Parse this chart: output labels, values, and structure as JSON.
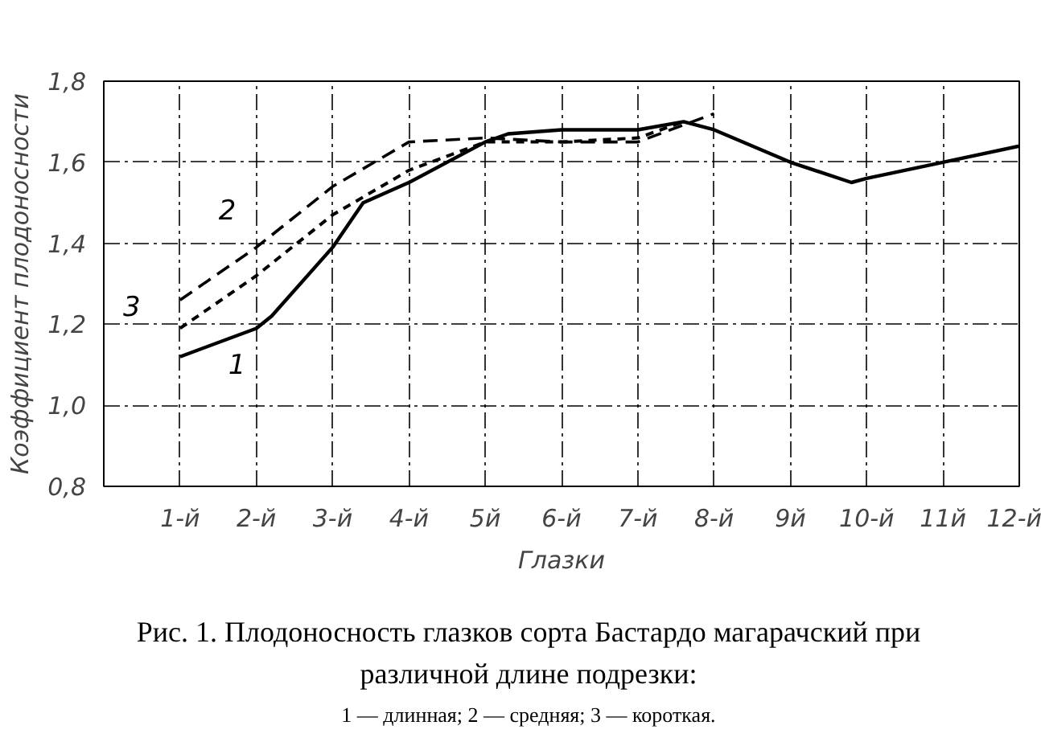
{
  "chart_data": {
    "type": "line",
    "xlabel": "Глазки",
    "ylabel": "Коэффициент плодоносности",
    "xlim": [
      0,
      12
    ],
    "ylim": [
      0.8,
      1.8
    ],
    "xticks": [
      {
        "value": 1,
        "label": "1-й"
      },
      {
        "value": 2,
        "label": "2-й"
      },
      {
        "value": 3,
        "label": "3-й"
      },
      {
        "value": 4,
        "label": "4-й"
      },
      {
        "value": 5,
        "label": "5й"
      },
      {
        "value": 6,
        "label": "6-й"
      },
      {
        "value": 7,
        "label": "7-й"
      },
      {
        "value": 8,
        "label": "8-й"
      },
      {
        "value": 9,
        "label": "9й"
      },
      {
        "value": 10,
        "label": "10-й"
      },
      {
        "value": 11,
        "label": "11й"
      },
      {
        "value": 12,
        "label": "12-й"
      }
    ],
    "yticks": [
      {
        "value": 0.8,
        "label": "0,8"
      },
      {
        "value": 1.0,
        "label": "1,0"
      },
      {
        "value": 1.2,
        "label": "1,2"
      },
      {
        "value": 1.4,
        "label": "1,4"
      },
      {
        "value": 1.6,
        "label": "1,6"
      },
      {
        "value": 1.8,
        "label": "1,8"
      }
    ],
    "grid": true,
    "marker": "none",
    "series": [
      {
        "name": "1",
        "color": "#000000",
        "line_style": "solid",
        "x": [
          1,
          2,
          2.2,
          3,
          3.4,
          4,
          5,
          5.3,
          6,
          7,
          7.6,
          8,
          9,
          9.8,
          10,
          11,
          12
        ],
        "values": [
          1.12,
          1.19,
          1.22,
          1.39,
          1.5,
          1.55,
          1.65,
          1.67,
          1.68,
          1.68,
          1.7,
          1.68,
          1.6,
          1.55,
          1.56,
          1.6,
          1.64
        ]
      },
      {
        "name": "2",
        "color": "#000000",
        "line_style": "dashed",
        "x": [
          1,
          2,
          3,
          4,
          5,
          6,
          7,
          8
        ],
        "values": [
          1.26,
          1.39,
          1.54,
          1.65,
          1.66,
          1.65,
          1.65,
          1.72
        ]
      },
      {
        "name": "3",
        "color": "#000000",
        "line_style": "dotted",
        "x": [
          1,
          2,
          3,
          4,
          5,
          6,
          7,
          7.6
        ],
        "values": [
          1.19,
          1.32,
          1.47,
          1.58,
          1.65,
          1.65,
          1.66,
          1.7
        ]
      }
    ],
    "annotations": [
      "Рис. 1. Плодоносность глазков сорта Бастардо магарачский при различной длине подрезки:",
      "1 — длинная; 2 — средняя; 3 — короткая."
    ]
  }
}
